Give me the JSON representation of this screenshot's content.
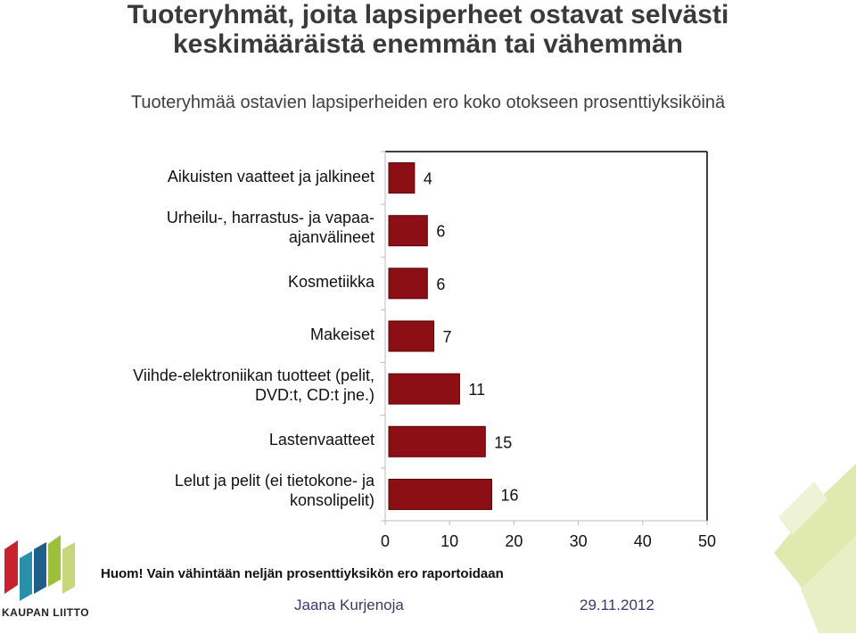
{
  "title": "Tuoteryhmät, joita lapsiperheet ostavat selvästi keskimääräistä enemmän tai vähemmän",
  "subtitle": "Tuoteryhmää ostavien lapsiperheiden ero koko otokseen prosenttiyksiköinä",
  "note": "Huom! Vain vähintään neljän prosenttiyksikön ero raportoidaan",
  "footer": {
    "author": "Jaana Kurjenoja",
    "date": "29.11.2012"
  },
  "logo": {
    "text": "KAUPAN LIITTO"
  },
  "colors": {
    "bar": "#8b0f14",
    "bar_edge": "#5a0000"
  },
  "chart_data": {
    "type": "bar",
    "orientation": "horizontal",
    "categories": [
      "Aikuisten vaatteet ja jalkineet",
      "Urheilu-, harrastus- ja vapaa-ajanvälineet",
      "Kosmetiikka",
      "Makeiset",
      "Viihde-elektroniikan tuotteet (pelit, DVD:t, CD:t jne.)",
      "Lastenvaatteet",
      "Lelut ja pelit (ei tietokone- ja konsolipelit)"
    ],
    "category_lines": [
      [
        "Aikuisten vaatteet ja jalkineet"
      ],
      [
        "Urheilu-, harrastus- ja vapaa-",
        "ajanvälineet"
      ],
      [
        "Kosmetiikka"
      ],
      [
        "Makeiset"
      ],
      [
        "Viihde-elektroniikan tuotteet (pelit,",
        "DVD:t, CD:t jne.)"
      ],
      [
        "Lastenvaatteet"
      ],
      [
        "Lelut ja pelit (ei tietokone- ja",
        "konsolipelit)"
      ]
    ],
    "values": [
      4,
      6,
      6,
      7,
      11,
      15,
      16
    ],
    "data_labels": [
      "4",
      "6",
      "6",
      "7",
      "11",
      "15",
      "16"
    ],
    "xlim": [
      0,
      50
    ],
    "xticks": [
      "0",
      "10",
      "20",
      "30",
      "40",
      "50"
    ],
    "grid": false,
    "legend": "none"
  }
}
